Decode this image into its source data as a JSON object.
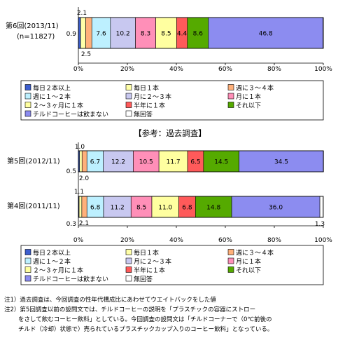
{
  "categories": [
    "毎日２本以上",
    "毎日１本",
    "週に３～４本",
    "週に１～２本",
    "月に２～３本",
    "月に１本",
    "２～３ヶ月に１本",
    "半年に１本",
    "それ以下",
    "チルドコーヒーは飲まない",
    "無回答"
  ],
  "colors": [
    "#3d5fd0",
    "#ffffa8",
    "#ffb07a",
    "#bdf0ff",
    "#c8c8f0",
    "#ff8fb8",
    "#ffffa0",
    "#ff5a5a",
    "#55aa00",
    "#8c8cf0",
    "#ffffff"
  ],
  "chart_data": [
    {
      "type": "bar",
      "orientation": "horizontal",
      "stacked": true,
      "xlim": [
        0,
        100
      ],
      "xticks": [
        "0%",
        "20%",
        "40%",
        "60%",
        "80%",
        "100%"
      ],
      "grid": false,
      "legend": "below",
      "series": [
        {
          "name": "第6回(2013/11)",
          "sub": "(n=11827)",
          "values": [
            0.9,
            2.1,
            2.5,
            7.6,
            10.2,
            8.3,
            8.5,
            4.4,
            8.6,
            46.8,
            0.1
          ]
        }
      ]
    },
    {
      "type": "bar",
      "orientation": "horizontal",
      "stacked": true,
      "title": "【参考：過去調査】",
      "xlim": [
        0,
        100
      ],
      "xticks": [
        "0%",
        "20%",
        "40%",
        "60%",
        "80%",
        "100%"
      ],
      "grid": false,
      "legend": "below",
      "series": [
        {
          "name": "第5回(2012/11)",
          "values": [
            0.5,
            1.0,
            2.0,
            6.7,
            12.2,
            10.5,
            11.7,
            6.5,
            14.5,
            34.5,
            0.0
          ]
        },
        {
          "name": "第4回(2011/11)",
          "values": [
            0.3,
            1.1,
            2.1,
            6.8,
            11.2,
            8.5,
            11.0,
            6.8,
            14.8,
            36.0,
            1.3
          ]
        }
      ]
    }
  ],
  "notes": [
    "注1）過去調査は、今回調査の性年代構成比にあわせてウエイトバックをした値",
    "注2）第5回調査以前の設問文では、チルドコーヒーの説明を「プラスチックの容器にストロー",
    "をさして飲むコーヒー飲料」としている。今回調査の設問文は「チルドコーナーで（0℃前後の",
    "チルド（冷却）状態で）売られているプラスチックカップ入りのコーヒー飲料」となっている。"
  ]
}
